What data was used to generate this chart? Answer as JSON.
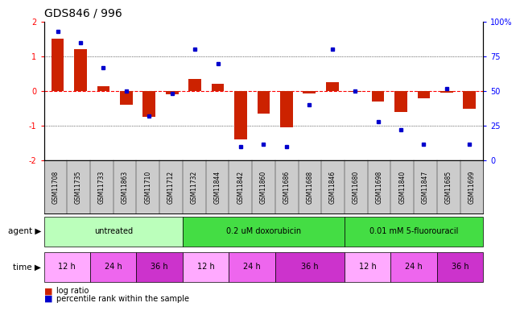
{
  "title": "GDS846 / 996",
  "samples": [
    "GSM11708",
    "GSM11735",
    "GSM11733",
    "GSM11863",
    "GSM11710",
    "GSM11712",
    "GSM11732",
    "GSM11844",
    "GSM11842",
    "GSM11860",
    "GSM11686",
    "GSM11688",
    "GSM11846",
    "GSM11680",
    "GSM11698",
    "GSM11840",
    "GSM11847",
    "GSM11685",
    "GSM11699"
  ],
  "log_ratio": [
    1.5,
    1.2,
    0.15,
    -0.4,
    -0.75,
    -0.1,
    0.35,
    0.2,
    -1.4,
    -0.65,
    -1.05,
    -0.08,
    0.25,
    -0.02,
    -0.3,
    -0.6,
    -0.2,
    -0.05,
    -0.5
  ],
  "percentile": [
    93,
    85,
    67,
    50,
    32,
    48,
    80,
    70,
    10,
    12,
    10,
    40,
    80,
    50,
    28,
    22,
    12,
    52,
    12
  ],
  "agents": [
    {
      "label": "untreated",
      "start": 0,
      "end": 6,
      "color": "#bbffbb"
    },
    {
      "label": "0.2 uM doxorubicin",
      "start": 6,
      "end": 13,
      "color": "#44dd44"
    },
    {
      "label": "0.01 mM 5-fluorouracil",
      "start": 13,
      "end": 19,
      "color": "#44dd44"
    }
  ],
  "times": [
    {
      "label": "12 h",
      "start": 0,
      "end": 2,
      "color": "#ffaaff"
    },
    {
      "label": "24 h",
      "start": 2,
      "end": 4,
      "color": "#ee66ee"
    },
    {
      "label": "36 h",
      "start": 4,
      "end": 6,
      "color": "#cc33cc"
    },
    {
      "label": "12 h",
      "start": 6,
      "end": 8,
      "color": "#ffaaff"
    },
    {
      "label": "24 h",
      "start": 8,
      "end": 10,
      "color": "#ee66ee"
    },
    {
      "label": "36 h",
      "start": 10,
      "end": 13,
      "color": "#cc33cc"
    },
    {
      "label": "12 h",
      "start": 13,
      "end": 15,
      "color": "#ffaaff"
    },
    {
      "label": "24 h",
      "start": 15,
      "end": 17,
      "color": "#ee66ee"
    },
    {
      "label": "36 h",
      "start": 17,
      "end": 19,
      "color": "#cc33cc"
    }
  ],
  "ylim": [
    -2,
    2
  ],
  "yticks_left": [
    -2,
    -1,
    0,
    1,
    2
  ],
  "yticks_right": [
    0,
    25,
    50,
    75,
    100
  ],
  "bar_color": "#cc2200",
  "dot_color": "#0000cc",
  "bar_width": 0.55,
  "sample_bg": "#cccccc",
  "fig_bg": "#ffffff"
}
